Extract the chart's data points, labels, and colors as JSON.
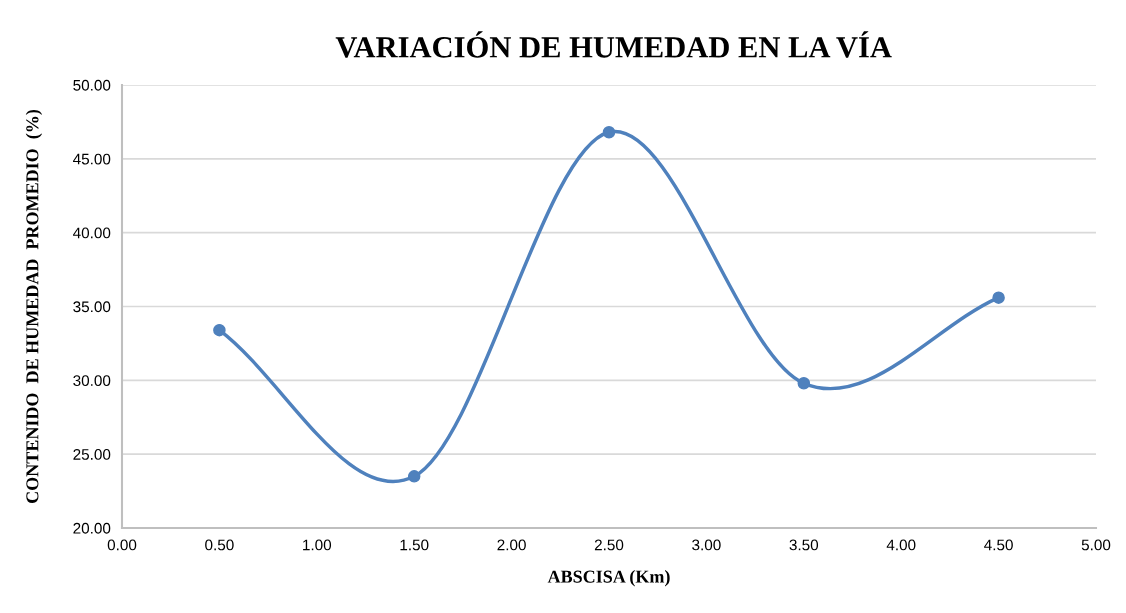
{
  "chart_data": {
    "type": "line",
    "title": "VARIACIÓN DE HUMEDAD EN LA VÍA",
    "xlabel": "ABSCISA (Km)",
    "ylabel": "CONTENIDO  DE HUMEDAD  PROMEDIO  (%)",
    "x": [
      0.5,
      1.5,
      2.5,
      3.5,
      4.5
    ],
    "series": [
      {
        "color": "#4f81bd",
        "values": [
          33.4,
          23.5,
          46.8,
          29.8,
          35.6
        ]
      }
    ],
    "xlim": [
      0,
      5
    ],
    "xticks": [
      {
        "value": 0,
        "label": "0.00"
      },
      {
        "value": 0.5,
        "label": "0.50"
      },
      {
        "value": 1,
        "label": "1.00"
      },
      {
        "value": 1.5,
        "label": "1.50"
      },
      {
        "value": 2,
        "label": "2.00"
      },
      {
        "value": 2.5,
        "label": "2.50"
      },
      {
        "value": 3,
        "label": "3.00"
      },
      {
        "value": 3.5,
        "label": "3.50"
      },
      {
        "value": 4,
        "label": "4.00"
      },
      {
        "value": 4.5,
        "label": "4.50"
      },
      {
        "value": 5,
        "label": "5.00"
      }
    ],
    "ylim": [
      20,
      50
    ],
    "yticks": [
      {
        "value": 20,
        "label": "20.00"
      },
      {
        "value": 25,
        "label": "25.00"
      },
      {
        "value": 30,
        "label": "30.00"
      },
      {
        "value": 35,
        "label": "35.00"
      },
      {
        "value": 40,
        "label": "40.00"
      },
      {
        "value": 45,
        "label": "45.00"
      },
      {
        "value": 50,
        "label": "50.00"
      }
    ],
    "grid": "y",
    "marker": "circle",
    "line_style": "solid"
  }
}
